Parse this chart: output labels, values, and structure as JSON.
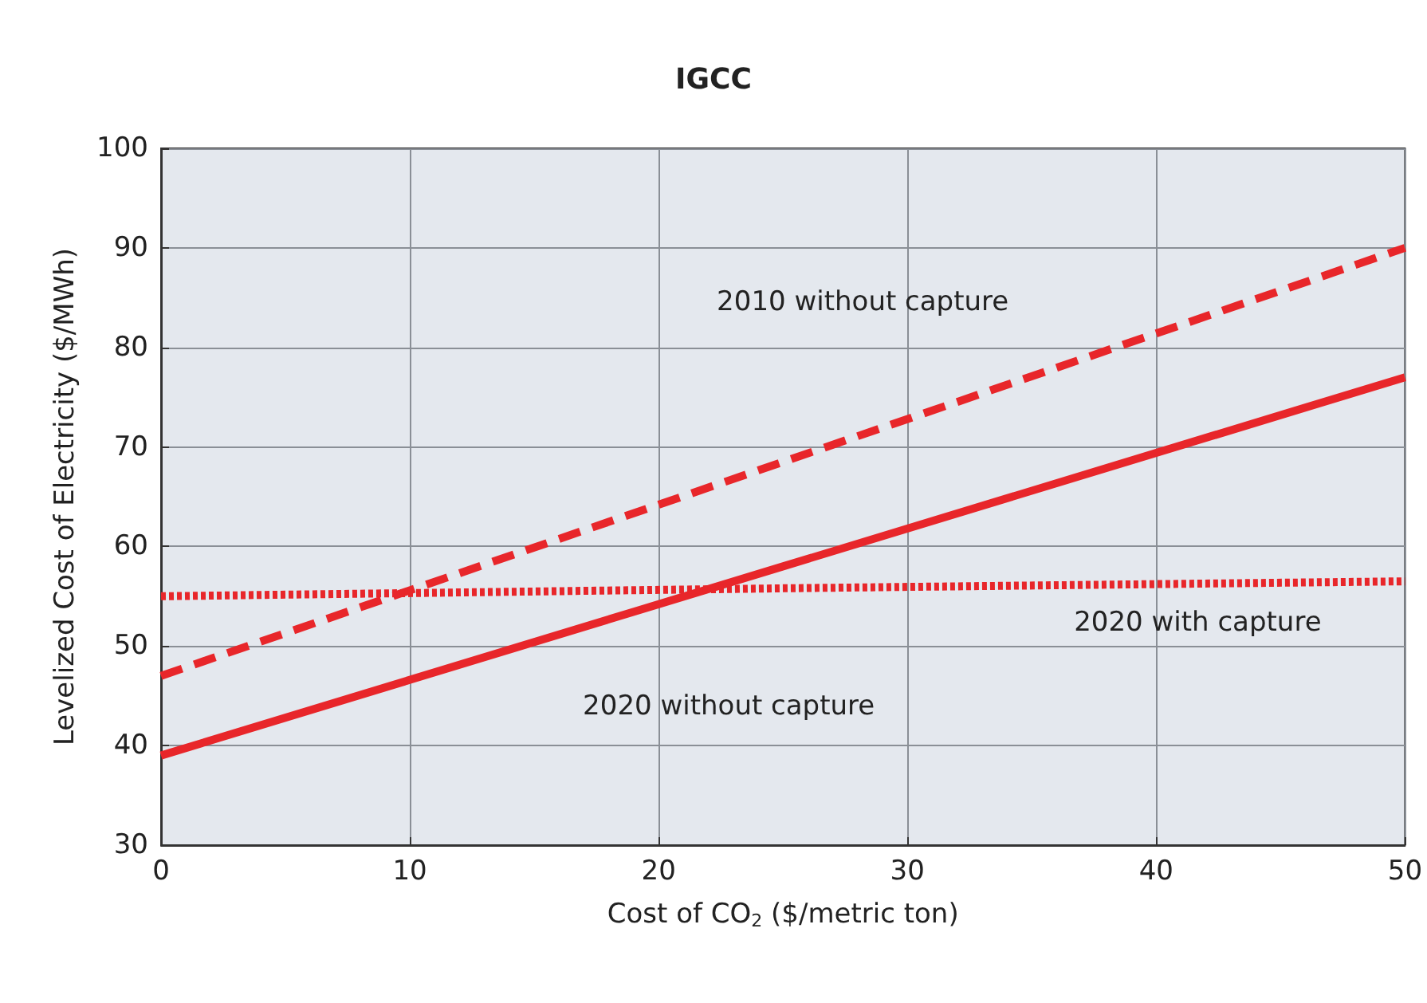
{
  "chart_data": {
    "type": "line",
    "title": "IGCC",
    "xlabel": "Cost of CO$_{2}$ ($/metric ton)",
    "ylabel": "Levelized Cost of Electricity ($/MWh)",
    "x": [
      0,
      25,
      50
    ],
    "series": [
      {
        "name": "2010 without capture",
        "color": "#e8262a",
        "line_style": "dashed",
        "values": [
          47,
          68.5,
          90
        ]
      },
      {
        "name": "2020 without capture",
        "color": "#e8262a",
        "line_style": "solid",
        "values": [
          39,
          58,
          77
        ]
      },
      {
        "name": "2020 with capture",
        "color": "#e8262a",
        "line_style": "dotted",
        "values": [
          55,
          55.8,
          56.5
        ]
      }
    ],
    "xlim": [
      0,
      50
    ],
    "xticks": [
      0,
      10,
      20,
      30,
      40,
      50
    ],
    "ylim": [
      30,
      100
    ],
    "yticks": [
      30,
      40,
      50,
      60,
      70,
      80,
      90,
      100
    ],
    "grid": true,
    "legend": false,
    "marker": "none"
  }
}
